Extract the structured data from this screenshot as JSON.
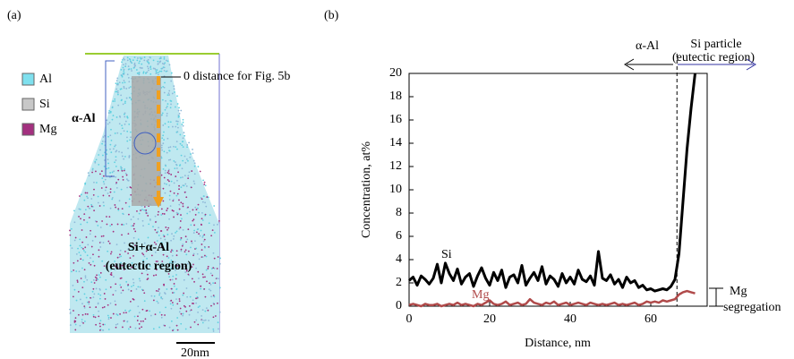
{
  "panel_a": {
    "label": "(a)",
    "legend": [
      "Al",
      "Si",
      "Mg"
    ],
    "pointer_note": "0 distance for Fig. 5b",
    "upper_region": "α-Al",
    "lower_region": "Si+α-Al",
    "lower_region_note": "(eutectic region)",
    "scale_bar": "20nm"
  },
  "chart_data": {
    "type": "line",
    "label": "(b)",
    "x_label": "Distance, nm",
    "y_label": "Concentration, at%",
    "annotations": {
      "left_arrow": "α-Al",
      "right_arrow": "Si particle",
      "right_arrow_note": "(eutectic region)",
      "bracket_top": "Mg",
      "bracket_bottom": "segregation"
    },
    "boundary_x": 66.5,
    "xlim": [
      0,
      74
    ],
    "xticks": [
      0,
      20,
      40,
      60
    ],
    "ylim": [
      0,
      20
    ],
    "yticks": [
      0,
      2,
      4,
      6,
      8,
      10,
      12,
      14,
      16,
      18,
      20
    ],
    "x": [
      0,
      1,
      2,
      3,
      4,
      5,
      6,
      7,
      8,
      9,
      10,
      11,
      12,
      13,
      14,
      15,
      16,
      17,
      18,
      19,
      20,
      21,
      22,
      23,
      24,
      25,
      26,
      27,
      28,
      29,
      30,
      31,
      32,
      33,
      34,
      35,
      36,
      37,
      38,
      39,
      40,
      41,
      42,
      43,
      44,
      45,
      46,
      47,
      48,
      49,
      50,
      51,
      52,
      53,
      54,
      55,
      56,
      57,
      58,
      59,
      60,
      61,
      62,
      63,
      64,
      65,
      66,
      67,
      68,
      69,
      70,
      71
    ],
    "series": [
      {
        "name": "Si",
        "color": "#000000",
        "values": [
          2.2,
          2.5,
          1.8,
          2.6,
          2.3,
          1.9,
          2.4,
          3.6,
          2.0,
          3.7,
          2.8,
          2.2,
          3.2,
          1.9,
          2.5,
          2.8,
          1.7,
          2.6,
          3.3,
          2.4,
          1.8,
          2.9,
          2.2,
          3.1,
          1.6,
          2.5,
          2.7,
          2.0,
          3.5,
          1.8,
          2.4,
          2.9,
          2.2,
          3.4,
          1.9,
          2.6,
          2.3,
          1.7,
          2.8,
          2.0,
          2.5,
          1.9,
          3.1,
          2.3,
          2.1,
          2.6,
          1.8,
          4.7,
          2.4,
          2.2,
          2.7,
          1.9,
          2.3,
          1.6,
          2.5,
          2.0,
          2.2,
          1.6,
          1.8,
          1.4,
          1.5,
          1.3,
          1.4,
          1.5,
          1.4,
          1.7,
          2.3,
          4.5,
          9.0,
          13.5,
          17.0,
          20.0
        ]
      },
      {
        "name": "Mg",
        "color": "#b04a4a",
        "values": [
          0.1,
          0.2,
          0.1,
          0.0,
          0.2,
          0.1,
          0.1,
          0.2,
          0.0,
          0.1,
          0.2,
          0.1,
          0.3,
          0.1,
          0.2,
          0.1,
          0.0,
          0.2,
          0.1,
          0.3,
          0.5,
          0.2,
          0.1,
          0.2,
          0.4,
          0.1,
          0.2,
          0.3,
          0.1,
          0.2,
          0.6,
          0.3,
          0.2,
          0.1,
          0.3,
          0.2,
          0.4,
          0.1,
          0.2,
          0.3,
          0.1,
          0.2,
          0.3,
          0.2,
          0.1,
          0.3,
          0.2,
          0.1,
          0.2,
          0.1,
          0.2,
          0.3,
          0.1,
          0.2,
          0.1,
          0.2,
          0.3,
          0.1,
          0.2,
          0.4,
          0.3,
          0.4,
          0.3,
          0.5,
          0.4,
          0.5,
          0.6,
          1.0,
          1.2,
          1.3,
          1.2,
          1.1
        ]
      }
    ]
  }
}
